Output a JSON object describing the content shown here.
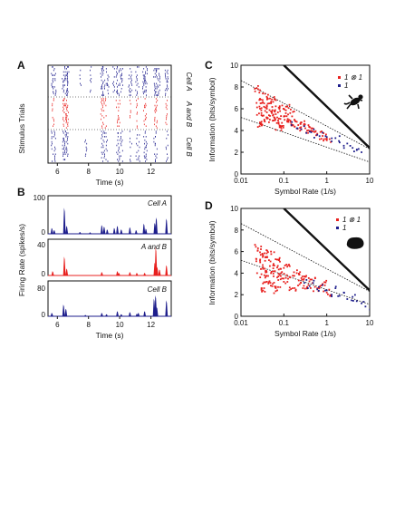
{
  "panels": {
    "A": {
      "letter": "A",
      "ylabel": "Stimulus Trials",
      "xlabel": "Time (s)",
      "xticks": [
        "6",
        "8",
        "10",
        "12"
      ],
      "row_labels": [
        "Cell A",
        "A and B",
        "Cell B"
      ]
    },
    "B": {
      "letter": "B",
      "ylabel": "Firing Rate (spikes/s)",
      "xlabel": "Time (s)",
      "xticks": [
        "6",
        "8",
        "10",
        "12"
      ],
      "subpanels": [
        {
          "label": "Cell A",
          "ymax": "100",
          "ymin": "0"
        },
        {
          "label": "A and B",
          "ymax": "40",
          "ymin": "0"
        },
        {
          "label": "Cell B",
          "ymax": "80",
          "ymin": "0"
        }
      ]
    },
    "C": {
      "letter": "C",
      "ylabel": "Information (bits/symbol)",
      "xlabel": "Symbol Rate (1/s)",
      "yticks": [
        "0",
        "2",
        "4",
        "6",
        "8",
        "10"
      ],
      "xticks": [
        "0.01",
        "0.1",
        "1",
        "10"
      ],
      "legend": [
        "1 ⊗ 1",
        "1"
      ],
      "silhouette": "lizard"
    },
    "D": {
      "letter": "D",
      "ylabel": "Information (bits/symbol)",
      "xlabel": "Symbol Rate (1/s)",
      "yticks": [
        "0",
        "2",
        "4",
        "6",
        "8",
        "10"
      ],
      "xticks": [
        "0.01",
        "0.1",
        "1",
        "10"
      ],
      "legend": [
        "1 ⊗ 1",
        "1"
      ],
      "silhouette": "blob"
    }
  },
  "colors": {
    "red": "#e8211f",
    "blue": "#1e1e8c",
    "black": "#111111"
  },
  "chart_data": [
    {
      "panel": "A",
      "type": "scatter",
      "xlabel": "Time (s)",
      "ylabel": "Stimulus Trials",
      "xlim": [
        5.3,
        13.2
      ],
      "rows": [
        {
          "name": "Cell A",
          "color": "blue",
          "event_times": [
            5.55,
            5.62,
            5.74,
            6.25,
            6.32,
            6.4,
            6.48,
            6.55,
            7.35,
            8.0,
            8.7,
            8.78,
            8.86,
            9.0,
            9.12,
            9.5,
            9.7,
            9.78,
            9.9,
            10.0,
            10.5,
            10.6,
            10.95,
            11.05,
            11.4,
            11.5,
            11.58,
            12.1,
            12.18,
            12.26,
            12.4,
            12.85,
            12.92
          ]
        },
        {
          "name": "A and B",
          "color": "red",
          "event_times": [
            5.6,
            6.28,
            6.35,
            6.44,
            6.52,
            8.72,
            8.82,
            9.0,
            9.7,
            9.85,
            10.55,
            11.0,
            11.45,
            11.55,
            12.15,
            12.25,
            12.88
          ]
        },
        {
          "name": "Cell B",
          "color": "blue",
          "event_times": [
            5.55,
            5.7,
            6.27,
            6.33,
            6.42,
            6.5,
            7.7,
            8.75,
            8.85,
            9.05,
            9.72,
            9.82,
            10.0,
            10.58,
            10.98,
            11.1,
            11.48,
            11.56,
            12.12,
            12.2,
            12.9
          ]
        }
      ]
    },
    {
      "panel": "B",
      "type": "area",
      "xlabel": "Time (s)",
      "ylabel": "Firing Rate (spikes/s)",
      "xlim": [
        5.3,
        13.2
      ],
      "series": [
        {
          "name": "Cell A",
          "color": "blue",
          "ylim": [
            0,
            100
          ],
          "peaks": [
            [
              5.55,
              16
            ],
            [
              5.7,
              10
            ],
            [
              6.35,
              72
            ],
            [
              6.5,
              22
            ],
            [
              7.35,
              5
            ],
            [
              8.0,
              4
            ],
            [
              8.75,
              24
            ],
            [
              8.9,
              20
            ],
            [
              9.1,
              12
            ],
            [
              9.55,
              16
            ],
            [
              9.75,
              22
            ],
            [
              10.0,
              12
            ],
            [
              10.55,
              18
            ],
            [
              10.95,
              10
            ],
            [
              11.45,
              28
            ],
            [
              11.58,
              14
            ],
            [
              12.15,
              30
            ],
            [
              12.25,
              45
            ],
            [
              12.9,
              42
            ]
          ]
        },
        {
          "name": "A and B",
          "color": "red",
          "ylim": [
            0,
            40
          ],
          "peaks": [
            [
              5.6,
              5
            ],
            [
              6.35,
              22
            ],
            [
              6.5,
              8
            ],
            [
              8.75,
              4
            ],
            [
              9.75,
              5
            ],
            [
              9.85,
              3
            ],
            [
              10.55,
              4
            ],
            [
              11.0,
              3
            ],
            [
              11.5,
              3
            ],
            [
              12.15,
              15
            ],
            [
              12.22,
              33
            ],
            [
              12.3,
              10
            ],
            [
              12.45,
              7
            ],
            [
              12.9,
              12
            ]
          ]
        },
        {
          "name": "Cell B",
          "color": "blue",
          "ylim": [
            0,
            80
          ],
          "peaks": [
            [
              5.55,
              8
            ],
            [
              6.3,
              28
            ],
            [
              6.45,
              18
            ],
            [
              7.7,
              3
            ],
            [
              8.75,
              8
            ],
            [
              9.05,
              5
            ],
            [
              9.75,
              12
            ],
            [
              10.0,
              5
            ],
            [
              10.55,
              10
            ],
            [
              11.0,
              6
            ],
            [
              11.1,
              8
            ],
            [
              11.5,
              12
            ],
            [
              12.1,
              42
            ],
            [
              12.2,
              50
            ],
            [
              12.28,
              22
            ],
            [
              12.9,
              38
            ]
          ]
        }
      ]
    },
    {
      "panel": "C",
      "type": "scatter",
      "xlabel": "Symbol Rate (1/s)",
      "ylabel": "Information (bits/symbol)",
      "xscale": "log",
      "xlim": [
        0.01,
        10
      ],
      "ylim": [
        0,
        10
      ],
      "series": [
        {
          "name": "1 ⊗ 1",
          "color": "red",
          "points": [
            [
              0.025,
              7.8
            ],
            [
              0.027,
              6.2
            ],
            [
              0.03,
              5.6
            ],
            [
              0.032,
              6.8
            ],
            [
              0.035,
              5.0
            ],
            [
              0.04,
              6.0
            ],
            [
              0.045,
              5.4
            ],
            [
              0.05,
              6.5
            ],
            [
              0.055,
              4.9
            ],
            [
              0.06,
              5.8
            ],
            [
              0.07,
              5.2
            ],
            [
              0.08,
              6.1
            ],
            [
              0.09,
              4.7
            ],
            [
              0.1,
              5.3
            ],
            [
              0.12,
              4.9
            ],
            [
              0.14,
              5.6
            ],
            [
              0.16,
              4.5
            ],
            [
              0.2,
              4.8
            ],
            [
              0.25,
              4.3
            ],
            [
              0.3,
              4.6
            ],
            [
              0.35,
              4.0
            ],
            [
              0.45,
              4.2
            ],
            [
              0.6,
              3.7
            ],
            [
              0.8,
              3.5
            ],
            [
              1.0,
              3.2
            ],
            [
              0.03,
              4.6
            ],
            [
              0.04,
              7.1
            ],
            [
              0.06,
              6.9
            ],
            [
              0.08,
              4.3
            ],
            [
              0.12,
              6.2
            ]
          ]
        },
        {
          "name": "1",
          "color": "blue",
          "points": [
            [
              0.15,
              4.5
            ],
            [
              0.2,
              4.2
            ],
            [
              0.3,
              4.4
            ],
            [
              0.4,
              3.9
            ],
            [
              0.5,
              4.1
            ],
            [
              0.6,
              3.6
            ],
            [
              0.8,
              3.8
            ],
            [
              1.0,
              3.4
            ],
            [
              1.3,
              3.0
            ],
            [
              1.6,
              3.3
            ],
            [
              2.0,
              2.9
            ],
            [
              2.5,
              2.6
            ],
            [
              3.0,
              2.8
            ],
            [
              4.0,
              2.4
            ],
            [
              5.0,
              2.2
            ],
            [
              6.5,
              2.0
            ]
          ]
        }
      ],
      "lines": [
        {
          "style": "solid",
          "from": [
            0.1,
            10
          ],
          "to": [
            10,
            2.4
          ]
        },
        {
          "style": "dotted",
          "from": [
            0.01,
            8.6
          ],
          "to": [
            10,
            2.3
          ]
        },
        {
          "style": "dotted",
          "from": [
            0.01,
            5.2
          ],
          "to": [
            10,
            1.1
          ]
        }
      ]
    },
    {
      "panel": "D",
      "type": "scatter",
      "xlabel": "Symbol Rate (1/s)",
      "ylabel": "Information (bits/symbol)",
      "xscale": "log",
      "xlim": [
        0.01,
        10
      ],
      "ylim": [
        0,
        10
      ],
      "series": [
        {
          "name": "1 ⊗ 1",
          "color": "red",
          "points": [
            [
              0.025,
              6.3
            ],
            [
              0.028,
              5.0
            ],
            [
              0.03,
              3.9
            ],
            [
              0.033,
              5.6
            ],
            [
              0.036,
              4.4
            ],
            [
              0.04,
              3.2
            ],
            [
              0.045,
              5.2
            ],
            [
              0.05,
              4.0
            ],
            [
              0.055,
              3.0
            ],
            [
              0.06,
              4.7
            ],
            [
              0.07,
              3.6
            ],
            [
              0.08,
              5.4
            ],
            [
              0.09,
              4.1
            ],
            [
              0.1,
              3.2
            ],
            [
              0.12,
              4.6
            ],
            [
              0.14,
              3.6
            ],
            [
              0.16,
              2.6
            ],
            [
              0.2,
              4.0
            ],
            [
              0.25,
              3.1
            ],
            [
              0.3,
              3.7
            ],
            [
              0.35,
              2.7
            ],
            [
              0.45,
              3.4
            ],
            [
              0.6,
              2.6
            ],
            [
              0.8,
              3.0
            ],
            [
              1.0,
              2.2
            ],
            [
              0.03,
              2.6
            ],
            [
              0.05,
              6.0
            ],
            [
              0.07,
              2.4
            ]
          ]
        },
        {
          "name": "1",
          "color": "blue",
          "points": [
            [
              0.3,
              3.1
            ],
            [
              0.4,
              2.8
            ],
            [
              0.5,
              3.3
            ],
            [
              0.6,
              2.5
            ],
            [
              0.8,
              2.9
            ],
            [
              1.0,
              2.4
            ],
            [
              1.3,
              2.0
            ],
            [
              1.6,
              2.6
            ],
            [
              2.0,
              1.9
            ],
            [
              2.5,
              2.2
            ],
            [
              3.0,
              1.6
            ],
            [
              4.0,
              1.8
            ],
            [
              5.0,
              1.4
            ],
            [
              6.5,
              1.2
            ],
            [
              8.0,
              0.9
            ]
          ]
        }
      ],
      "lines": [
        {
          "style": "solid",
          "from": [
            0.1,
            10
          ],
          "to": [
            10,
            2.4
          ]
        },
        {
          "style": "dotted",
          "from": [
            0.01,
            8.6
          ],
          "to": [
            10,
            2.3
          ]
        },
        {
          "style": "dotted",
          "from": [
            0.01,
            5.2
          ],
          "to": [
            10,
            1.1
          ]
        }
      ]
    }
  ]
}
